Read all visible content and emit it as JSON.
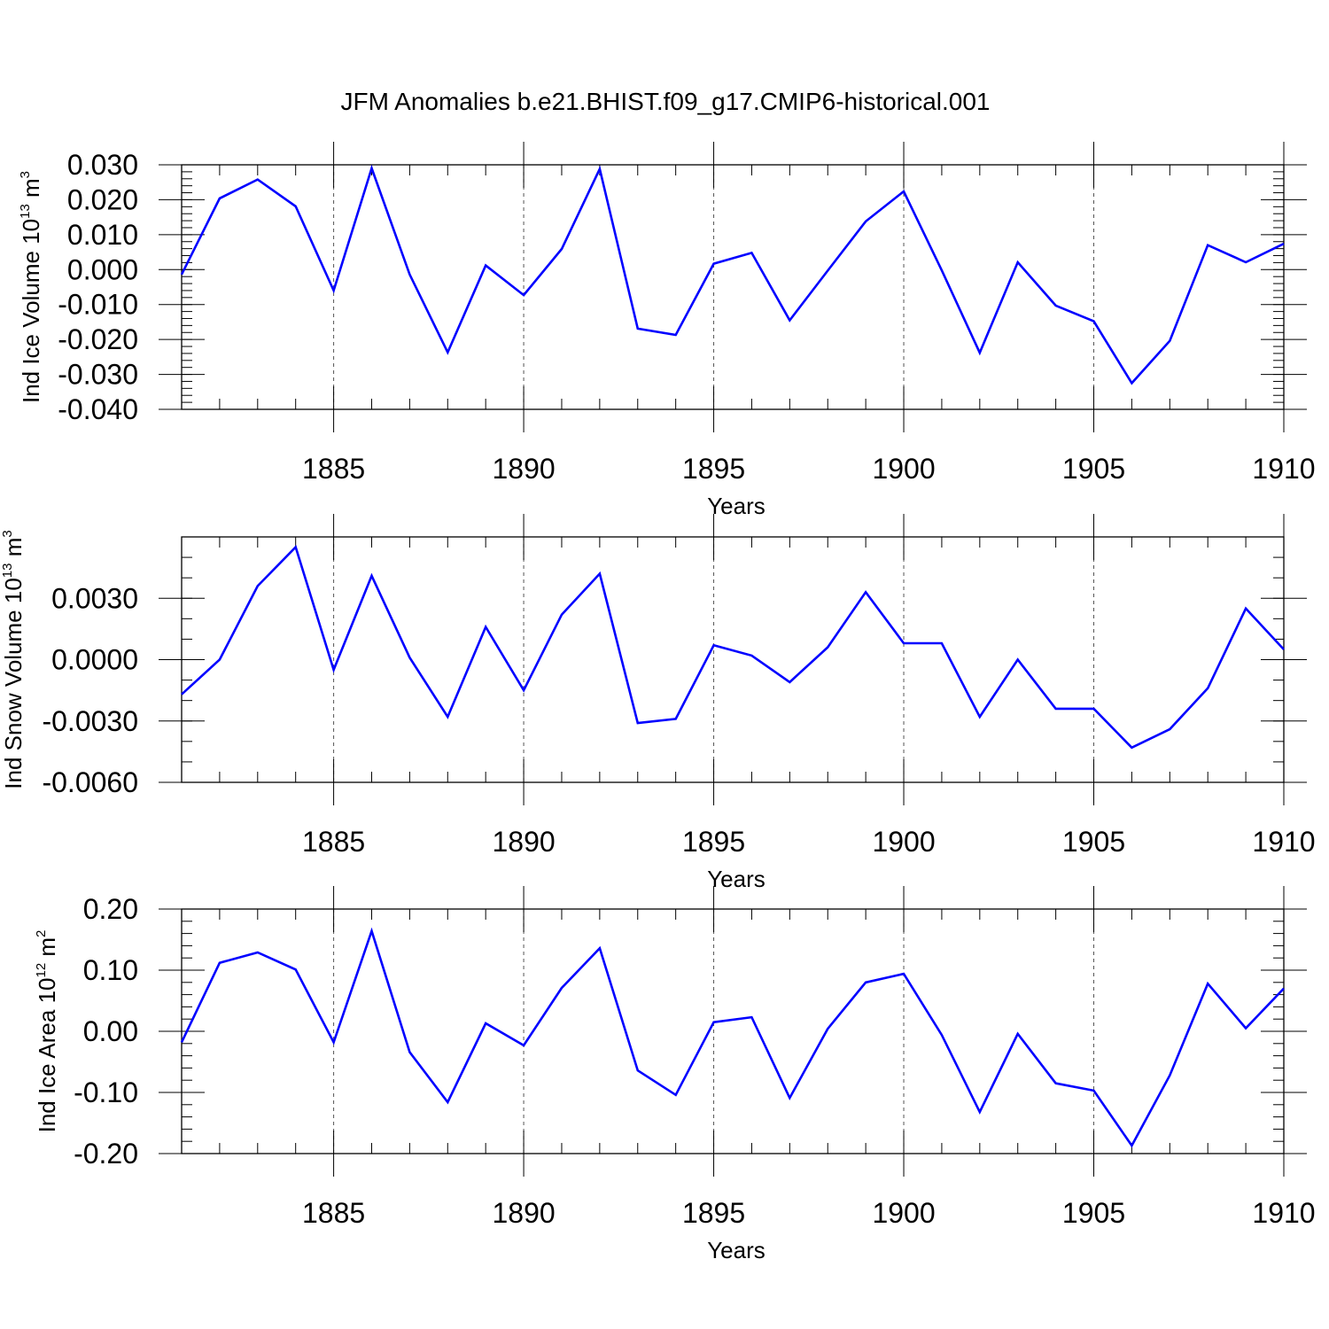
{
  "title": "JFM Anomalies b.e21.BHIST.f09_g17.CMIP6-historical.001",
  "colors": {
    "line": "#0000ff",
    "axis": "#000000",
    "grid": "#555555"
  },
  "chart_data": [
    {
      "type": "line",
      "ylabel": {
        "base": "Ind Ice Volume 10",
        "exp": "13",
        "unit": " m",
        "unit_exp": "3"
      },
      "xlabel": "Years",
      "xlim": [
        1881,
        1910
      ],
      "ylim": [
        -0.04,
        0.03
      ],
      "yticks": [
        -0.04,
        -0.03,
        -0.02,
        -0.01,
        0.0,
        0.01,
        0.02,
        0.03
      ],
      "ytick_labels": [
        "-0.040",
        "-0.030",
        "-0.020",
        "-0.010",
        "0.000",
        "0.010",
        "0.020",
        "0.030"
      ],
      "yminor_step": 0.002,
      "xticks": [
        1885,
        1890,
        1895,
        1900,
        1905,
        1910
      ],
      "xtick_labels": [
        "1885",
        "1890",
        "1895",
        "1900",
        "1905",
        "1910"
      ],
      "grid": "dashed vertical at major x ticks",
      "x": [
        1881,
        1882,
        1883,
        1884,
        1885,
        1886,
        1887,
        1888,
        1889,
        1890,
        1891,
        1892,
        1893,
        1894,
        1895,
        1896,
        1897,
        1898,
        1899,
        1900,
        1901,
        1902,
        1903,
        1904,
        1905,
        1906,
        1907,
        1908,
        1909,
        1910
      ],
      "values": [
        -0.0014,
        0.0204,
        0.0258,
        0.0181,
        -0.006,
        0.029,
        -0.0014,
        -0.0237,
        0.0012,
        -0.0073,
        0.0059,
        0.0288,
        -0.0169,
        -0.0187,
        0.0017,
        0.0048,
        -0.0145,
        -0.0003,
        0.0138,
        0.0224,
        -0.0002,
        -0.0238,
        0.0021,
        -0.0103,
        -0.0148,
        -0.0325,
        -0.0204,
        0.007,
        0.0021,
        0.0074
      ]
    },
    {
      "type": "line",
      "ylabel": {
        "base": "Ind Snow Volume 10",
        "exp": "13",
        "unit": " m",
        "unit_exp": "3"
      },
      "xlabel": "Years",
      "xlim": [
        1881,
        1910
      ],
      "ylim": [
        -0.006,
        0.006
      ],
      "yticks": [
        -0.006,
        -0.003,
        0.0,
        0.003
      ],
      "ytick_labels": [
        "-0.0060",
        "-0.0030",
        "0.0000",
        "0.0030"
      ],
      "yminor_step": 0.001,
      "xticks": [
        1885,
        1890,
        1895,
        1900,
        1905,
        1910
      ],
      "xtick_labels": [
        "1885",
        "1890",
        "1895",
        "1900",
        "1905",
        "1910"
      ],
      "grid": "dashed vertical at major x ticks",
      "x": [
        1881,
        1882,
        1883,
        1884,
        1885,
        1886,
        1887,
        1888,
        1889,
        1890,
        1891,
        1892,
        1893,
        1894,
        1895,
        1896,
        1897,
        1898,
        1899,
        1900,
        1901,
        1902,
        1903,
        1904,
        1905,
        1906,
        1907,
        1908,
        1909,
        1910
      ],
      "values": [
        -0.0017,
        0.0,
        0.0036,
        0.0055,
        -0.0005,
        0.0041,
        0.0001,
        -0.0028,
        0.0016,
        -0.0015,
        0.0022,
        0.0042,
        -0.0031,
        -0.0029,
        0.0007,
        0.0002,
        -0.0011,
        0.0006,
        0.0033,
        0.0008,
        0.0008,
        -0.0028,
        0.0,
        -0.0024,
        -0.0024,
        -0.0043,
        -0.0034,
        -0.0014,
        0.0025,
        0.0005
      ]
    },
    {
      "type": "line",
      "ylabel": {
        "base": "Ind Ice Area 10",
        "exp": "12",
        "unit": " m",
        "unit_exp": "2"
      },
      "xlabel": "Years",
      "xlim": [
        1881,
        1910
      ],
      "ylim": [
        -0.2,
        0.2
      ],
      "yticks": [
        -0.2,
        -0.1,
        0.0,
        0.1,
        0.2
      ],
      "ytick_labels": [
        "-0.20",
        "-0.10",
        "0.00",
        "0.10",
        "0.20"
      ],
      "yminor_step": 0.02,
      "xticks": [
        1885,
        1890,
        1895,
        1900,
        1905,
        1910
      ],
      "xtick_labels": [
        "1885",
        "1890",
        "1895",
        "1900",
        "1905",
        "1910"
      ],
      "grid": "dashed vertical at major x ticks",
      "x": [
        1881,
        1882,
        1883,
        1884,
        1885,
        1886,
        1887,
        1888,
        1889,
        1890,
        1891,
        1892,
        1893,
        1894,
        1895,
        1896,
        1897,
        1898,
        1899,
        1900,
        1901,
        1902,
        1903,
        1904,
        1905,
        1906,
        1907,
        1908,
        1909,
        1910
      ],
      "values": [
        -0.018,
        0.112,
        0.129,
        0.101,
        -0.018,
        0.164,
        -0.034,
        -0.116,
        0.013,
        -0.023,
        0.071,
        0.136,
        -0.064,
        -0.104,
        0.015,
        0.023,
        -0.109,
        0.004,
        0.08,
        0.094,
        -0.006,
        -0.132,
        -0.004,
        -0.085,
        -0.097,
        -0.187,
        -0.072,
        0.078,
        0.005,
        0.07
      ]
    }
  ]
}
